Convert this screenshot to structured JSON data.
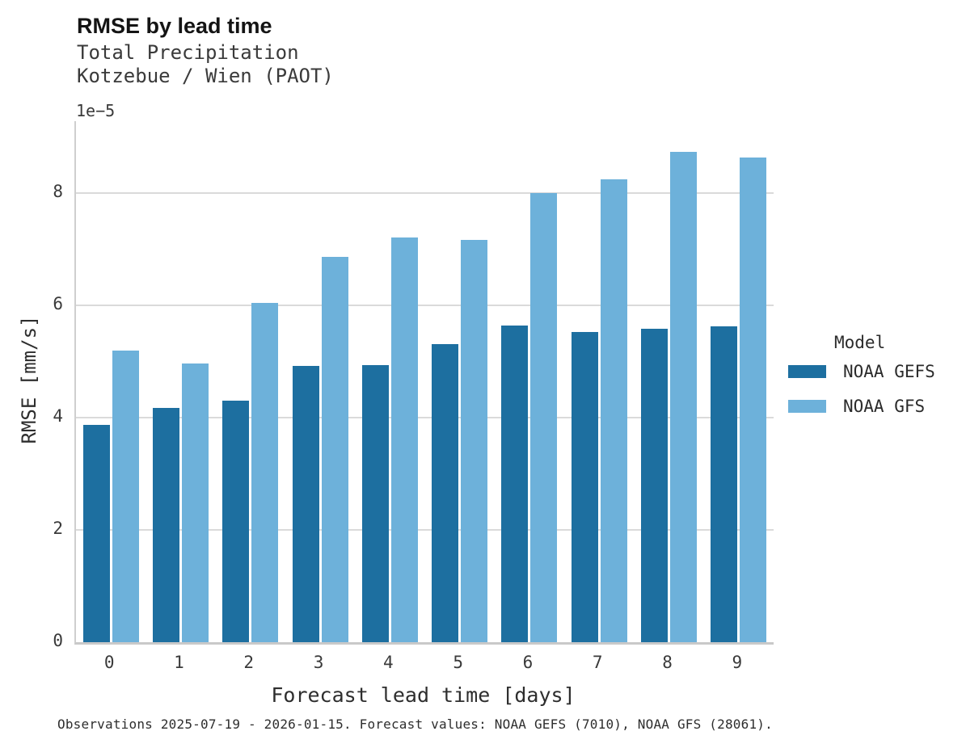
{
  "header": {
    "title": "RMSE by lead time",
    "subtitle_line1": "Total Precipitation",
    "subtitle_line2": "Kotzebue / Wien (PAOT)"
  },
  "chart_data": {
    "type": "bar",
    "title": "RMSE by lead time",
    "subtitle": [
      "Total Precipitation",
      "Kotzebue / Wien (PAOT)"
    ],
    "categories": [
      "0",
      "1",
      "2",
      "3",
      "4",
      "5",
      "6",
      "7",
      "8",
      "9"
    ],
    "series": [
      {
        "name": "NOAA GEFS",
        "color": "#1d6fa0",
        "values": [
          3.87,
          4.17,
          4.3,
          4.92,
          4.93,
          5.31,
          5.64,
          5.53,
          5.58,
          5.63
        ]
      },
      {
        "name": "NOAA GFS",
        "color": "#6db1da",
        "values": [
          5.19,
          4.97,
          6.04,
          6.86,
          7.21,
          7.17,
          8.0,
          8.24,
          8.73,
          8.63
        ]
      }
    ],
    "value_scale": "1e-5",
    "y_offset_label": "1e−5",
    "xlabel": "Forecast lead time [days]",
    "ylabel": "RMSE [mm/s]",
    "yticks": [
      0,
      2,
      4,
      6,
      8
    ],
    "ylim": [
      0,
      9.28
    ],
    "grid": "horizontal",
    "legend_title": "Model",
    "legend_position": "right",
    "colors": {
      "gefs_bar": "#1d6fa0",
      "gfs_bar": "#6db1da",
      "gridline": "#dadada",
      "axis_spine": "#c9c9c9",
      "text": "#2b2b2b"
    }
  },
  "footer": {
    "note": "Observations 2025-07-19 - 2026-01-15. Forecast values: NOAA GEFS (7010), NOAA GFS (28061)."
  }
}
